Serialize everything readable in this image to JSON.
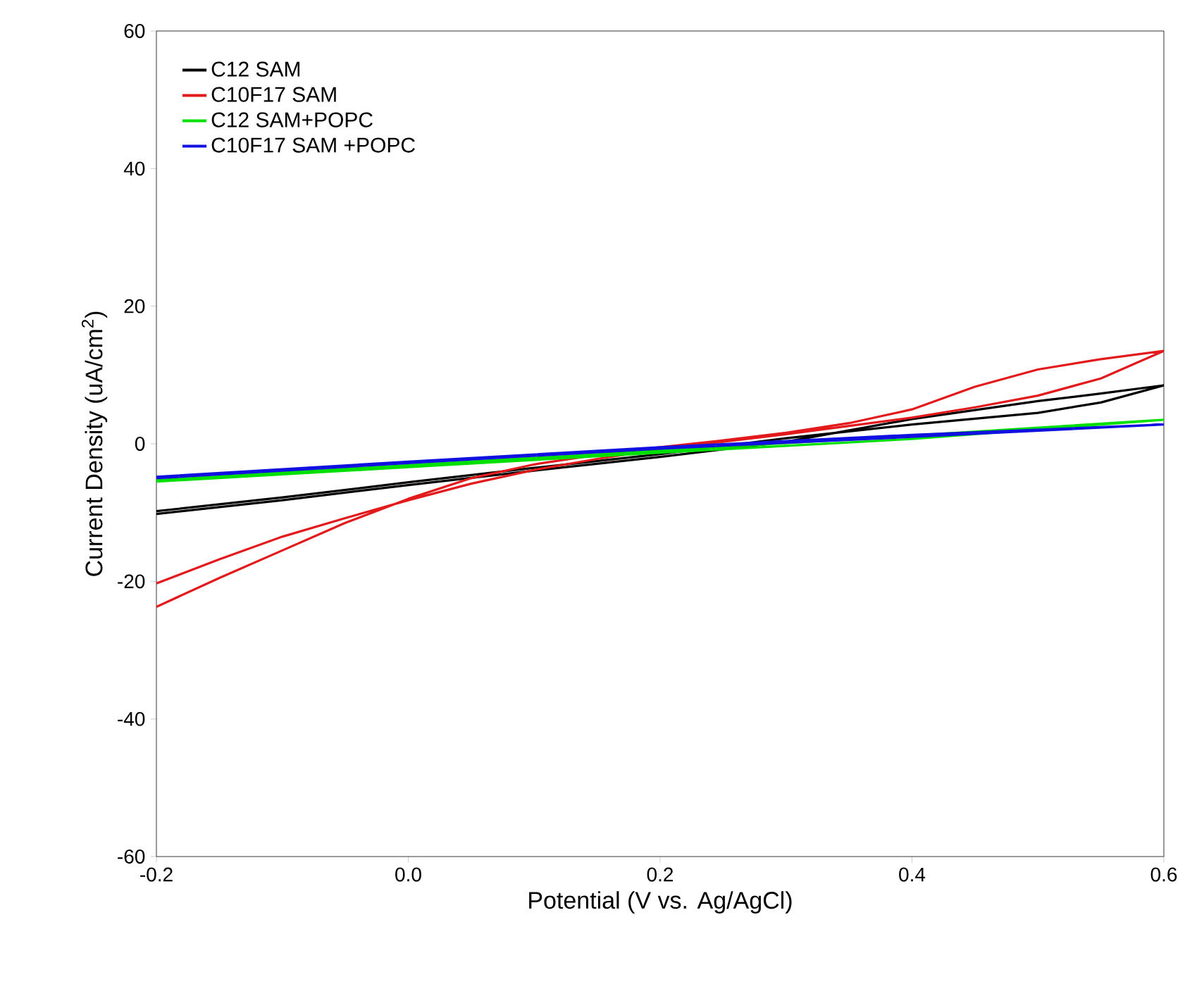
{
  "chart_data": {
    "type": "line",
    "xlabel": "Potential (V vs. Ag/AgCl)",
    "ylabel": "Current Density (uA/cm$^{2}$)",
    "xlim": [
      -0.2,
      0.6
    ],
    "ylim": [
      -60,
      60
    ],
    "xticks": [
      -0.2,
      {
        "value": 0,
        "label": "0.0"
      },
      0.2,
      0.4,
      0.6
    ],
    "yticks": [
      -60,
      -40,
      -20,
      0,
      20,
      40,
      60
    ],
    "legend": "top left",
    "grid": false,
    "marker": "none",
    "line_style": "solid",
    "series": [
      {
        "name": "C12 SAM",
        "color": "#000000",
        "x": [
          -0.2,
          -0.1,
          0,
          0.1,
          0.2,
          0.3,
          0.4,
          0.5,
          0.55,
          0.6,
          0.55,
          0.5,
          0.4,
          0.3,
          0.2,
          0.1,
          0,
          -0.1,
          -0.2
        ],
        "values": [
          -10.2,
          -8.2,
          -6.0,
          -3.9,
          -1.9,
          0.3,
          3.6,
          6.2,
          7.3,
          8.5,
          6.0,
          4.5,
          2.8,
          0.8,
          -1.5,
          -3.5,
          -5.6,
          -7.8,
          -9.8
        ]
      },
      {
        "name": "C10F17 SAM",
        "color": "#e31a1c",
        "x": [
          -0.2,
          -0.15,
          -0.1,
          -0.05,
          0,
          0.05,
          0.1,
          0.15,
          0.2,
          0.25,
          0.3,
          0.35,
          0.4,
          0.45,
          0.5,
          0.55,
          0.6,
          0.55,
          0.5,
          0.45,
          0.4,
          0.35,
          0.3,
          0.25,
          0.2,
          0.15,
          0.1,
          0.05,
          0,
          -0.05,
          -0.1,
          -0.15,
          -0.2
        ],
        "values": [
          -23.7,
          -19.5,
          -15.5,
          -11.5,
          -8.0,
          -5.0,
          -3.0,
          -1.6,
          -0.5,
          0.5,
          1.6,
          3.0,
          5.0,
          8.3,
          10.8,
          12.3,
          13.5,
          9.5,
          7.0,
          5.3,
          3.8,
          2.6,
          1.4,
          0.3,
          -0.8,
          -2.2,
          -3.8,
          -5.8,
          -8.2,
          -10.8,
          -13.5,
          -16.8,
          -20.3
        ]
      },
      {
        "name": "C12 SAM+POPC",
        "color": "#00e000",
        "x": [
          -0.2,
          0,
          0.2,
          0.4,
          0.6,
          0.4,
          0.2,
          0,
          -0.2
        ],
        "values": [
          -5.3,
          -3.1,
          -1.0,
          1.2,
          3.5,
          0.7,
          -1.3,
          -3.4,
          -5.5
        ]
      },
      {
        "name": "C10F17 SAM +POPC",
        "color": "#1010e0",
        "x": [
          -0.2,
          0,
          0.2,
          0.4,
          0.6,
          0.4,
          0.2,
          0,
          -0.2
        ],
        "values": [
          -5.0,
          -2.8,
          -0.7,
          1.0,
          2.8,
          1.3,
          -0.5,
          -2.6,
          -4.8
        ]
      }
    ]
  }
}
